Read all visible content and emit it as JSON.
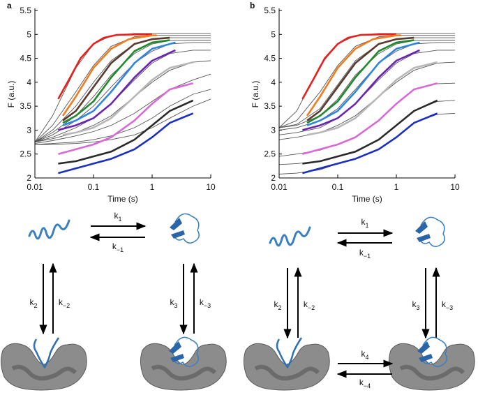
{
  "chart_data": [
    {
      "type": "line",
      "panel": "a",
      "xlabel": "Time (s)",
      "ylabel": "F (a.u.)",
      "xscale": "log",
      "xlim": [
        0.01,
        10
      ],
      "xticks": [
        0.01,
        0.1,
        1,
        10
      ],
      "ylim": [
        2,
        5.5
      ],
      "yticks": [
        2,
        2.5,
        3,
        3.5,
        4,
        4.5,
        5,
        5.5
      ],
      "series": [
        {
          "color": "#e8201c",
          "x": [
            0.025,
            0.04,
            0.06,
            0.1,
            0.15,
            0.25,
            0.5,
            1
          ],
          "values": [
            3.65,
            4.1,
            4.5,
            4.8,
            4.93,
            4.99,
            5.0,
            5.0
          ]
        },
        {
          "color": "#f07d1e",
          "x": [
            0.03,
            0.05,
            0.1,
            0.2,
            0.4,
            1,
            1.2
          ],
          "values": [
            3.3,
            3.7,
            4.3,
            4.7,
            4.9,
            4.98,
            4.98
          ]
        },
        {
          "color": "#5a3a2e",
          "x": [
            0.03,
            0.05,
            0.1,
            0.2,
            0.5,
            1,
            2
          ],
          "values": [
            3.2,
            3.4,
            3.9,
            4.4,
            4.8,
            4.9,
            4.93
          ]
        },
        {
          "color": "#1e8a2c",
          "x": [
            0.03,
            0.05,
            0.1,
            0.2,
            0.5,
            1,
            2
          ],
          "values": [
            3.15,
            3.3,
            3.6,
            4.1,
            4.65,
            4.83,
            4.88
          ]
        },
        {
          "color": "#2f86e0",
          "x": [
            0.03,
            0.05,
            0.1,
            0.2,
            0.5,
            1,
            2.5
          ],
          "values": [
            3.1,
            3.2,
            3.4,
            3.8,
            4.4,
            4.7,
            4.83
          ]
        },
        {
          "color": "#6a24b0",
          "x": [
            0.025,
            0.05,
            0.1,
            0.2,
            0.5,
            1,
            2.5
          ],
          "values": [
            3.0,
            3.1,
            3.25,
            3.55,
            4.1,
            4.45,
            4.67
          ]
        },
        {
          "color": "#b8b8b8",
          "x": [
            0.03,
            0.05,
            0.1,
            0.2,
            0.5,
            1,
            2,
            5
          ],
          "values": [
            2.9,
            2.95,
            3.05,
            3.25,
            3.7,
            4.05,
            4.3,
            4.42
          ]
        },
        {
          "color": "#d86ad8",
          "x": [
            0.025,
            0.05,
            0.1,
            0.2,
            0.5,
            1,
            2,
            5
          ],
          "values": [
            2.5,
            2.6,
            2.7,
            2.85,
            3.2,
            3.55,
            3.85,
            3.98
          ]
        },
        {
          "color": "#2a2a2a",
          "x": [
            0.025,
            0.05,
            0.1,
            0.2,
            0.5,
            1,
            2,
            5
          ],
          "values": [
            2.3,
            2.35,
            2.45,
            2.55,
            2.8,
            3.1,
            3.4,
            3.62
          ]
        },
        {
          "color": "#1a2ec0",
          "x": [
            0.025,
            0.05,
            0.1,
            0.2,
            0.5,
            1,
            2,
            5
          ],
          "values": [
            2.1,
            2.2,
            2.3,
            2.4,
            2.6,
            2.85,
            3.15,
            3.35
          ]
        }
      ],
      "fit_color": "#555555",
      "fit_x": [
        0.01,
        0.02,
        0.05,
        0.1,
        0.2,
        0.5,
        1,
        2,
        5,
        10
      ],
      "fits": [
        [
          2.75,
          3.3,
          4.3,
          4.8,
          4.97,
          5.02,
          5.02,
          5.02,
          5.02,
          5.02
        ],
        [
          2.75,
          3.1,
          3.8,
          4.35,
          4.75,
          4.95,
          4.98,
          4.98,
          4.98,
          4.98
        ],
        [
          2.75,
          3.0,
          3.5,
          4.0,
          4.45,
          4.8,
          4.9,
          4.93,
          4.93,
          4.93
        ],
        [
          2.75,
          2.95,
          3.3,
          3.7,
          4.15,
          4.6,
          4.8,
          4.87,
          4.88,
          4.88
        ],
        [
          2.75,
          2.9,
          3.2,
          3.5,
          3.9,
          4.4,
          4.65,
          4.8,
          4.83,
          4.83
        ],
        [
          2.75,
          2.85,
          3.05,
          3.25,
          3.55,
          4.05,
          4.4,
          4.6,
          4.67,
          4.67
        ],
        [
          2.75,
          2.82,
          2.95,
          3.1,
          3.3,
          3.7,
          4.0,
          4.25,
          4.42,
          4.45
        ],
        [
          2.72,
          2.78,
          2.88,
          2.97,
          3.1,
          3.35,
          3.6,
          3.85,
          4.05,
          4.17
        ],
        [
          2.7,
          2.72,
          2.75,
          2.8,
          2.88,
          3.05,
          3.25,
          3.5,
          3.75,
          3.85
        ],
        [
          2.7,
          2.7,
          2.72,
          2.75,
          2.8,
          2.9,
          3.05,
          3.25,
          3.5,
          3.65
        ]
      ]
    },
    {
      "type": "line",
      "panel": "b",
      "xlabel": "Time (s)",
      "ylabel": "F (a.u.)",
      "xscale": "log",
      "xlim": [
        0.01,
        10
      ],
      "xticks": [
        0.01,
        0.1,
        1,
        10
      ],
      "ylim": [
        2,
        5.5
      ],
      "yticks": [
        2,
        2.5,
        3,
        3.5,
        4,
        4.5,
        5,
        5.5
      ],
      "series": [
        {
          "color": "#e8201c",
          "x": [
            0.025,
            0.04,
            0.06,
            0.1,
            0.15,
            0.25,
            0.5,
            1
          ],
          "values": [
            3.65,
            4.1,
            4.5,
            4.8,
            4.93,
            4.99,
            5.0,
            5.0
          ]
        },
        {
          "color": "#f07d1e",
          "x": [
            0.03,
            0.05,
            0.1,
            0.2,
            0.4,
            1,
            1.2
          ],
          "values": [
            3.3,
            3.7,
            4.3,
            4.7,
            4.9,
            4.98,
            4.98
          ]
        },
        {
          "color": "#5a3a2e",
          "x": [
            0.03,
            0.05,
            0.1,
            0.2,
            0.5,
            1,
            2
          ],
          "values": [
            3.2,
            3.4,
            3.9,
            4.4,
            4.8,
            4.9,
            4.93
          ]
        },
        {
          "color": "#1e8a2c",
          "x": [
            0.03,
            0.05,
            0.1,
            0.2,
            0.5,
            1,
            2
          ],
          "values": [
            3.15,
            3.3,
            3.6,
            4.1,
            4.65,
            4.83,
            4.88
          ]
        },
        {
          "color": "#2f86e0",
          "x": [
            0.03,
            0.05,
            0.1,
            0.2,
            0.5,
            1,
            2.5
          ],
          "values": [
            3.1,
            3.2,
            3.4,
            3.8,
            4.4,
            4.7,
            4.83
          ]
        },
        {
          "color": "#6a24b0",
          "x": [
            0.025,
            0.05,
            0.1,
            0.2,
            0.5,
            1,
            2.5
          ],
          "values": [
            3.0,
            3.1,
            3.25,
            3.55,
            4.1,
            4.45,
            4.67
          ]
        },
        {
          "color": "#b8b8b8",
          "x": [
            0.03,
            0.05,
            0.1,
            0.2,
            0.5,
            1,
            2,
            5
          ],
          "values": [
            2.9,
            2.95,
            3.05,
            3.25,
            3.7,
            4.05,
            4.3,
            4.42
          ]
        },
        {
          "color": "#d86ad8",
          "x": [
            0.025,
            0.05,
            0.1,
            0.2,
            0.5,
            1,
            2,
            5
          ],
          "values": [
            2.5,
            2.6,
            2.7,
            2.85,
            3.2,
            3.55,
            3.85,
            3.98
          ]
        },
        {
          "color": "#2a2a2a",
          "x": [
            0.025,
            0.05,
            0.1,
            0.2,
            0.5,
            1,
            2,
            5
          ],
          "values": [
            2.3,
            2.35,
            2.45,
            2.55,
            2.8,
            3.1,
            3.4,
            3.62
          ]
        },
        {
          "color": "#1a2ec0",
          "x": [
            0.025,
            0.05,
            0.1,
            0.2,
            0.5,
            1,
            2,
            5
          ],
          "values": [
            2.1,
            2.2,
            2.3,
            2.4,
            2.6,
            2.85,
            3.15,
            3.35
          ]
        }
      ],
      "fit_color": "#555555",
      "fit_x": [
        0.01,
        0.02,
        0.05,
        0.1,
        0.2,
        0.5,
        1,
        2,
        5,
        10
      ],
      "fits": [
        [
          3.05,
          3.4,
          4.35,
          4.8,
          4.97,
          5.02,
          5.02,
          5.02,
          5.02,
          5.02
        ],
        [
          3.05,
          3.2,
          3.8,
          4.35,
          4.75,
          4.95,
          4.98,
          4.98,
          4.98,
          4.98
        ],
        [
          3.05,
          3.12,
          3.45,
          3.95,
          4.45,
          4.8,
          4.9,
          4.93,
          4.93,
          4.93
        ],
        [
          3.05,
          3.1,
          3.3,
          3.65,
          4.15,
          4.6,
          4.8,
          4.87,
          4.88,
          4.88
        ],
        [
          3.0,
          3.05,
          3.2,
          3.45,
          3.85,
          4.4,
          4.65,
          4.8,
          4.83,
          4.83
        ],
        [
          2.9,
          2.95,
          3.05,
          3.25,
          3.55,
          4.05,
          4.4,
          4.6,
          4.67,
          4.67
        ],
        [
          2.8,
          2.85,
          2.95,
          3.1,
          3.3,
          3.7,
          4.0,
          4.25,
          4.4,
          4.42
        ],
        [
          2.45,
          2.5,
          2.58,
          2.7,
          2.85,
          3.2,
          3.55,
          3.85,
          3.97,
          3.98
        ],
        [
          2.28,
          2.3,
          2.35,
          2.45,
          2.55,
          2.8,
          3.1,
          3.4,
          3.6,
          3.62
        ],
        [
          2.08,
          2.1,
          2.17,
          2.3,
          2.4,
          2.6,
          2.85,
          3.15,
          3.33,
          3.35
        ]
      ]
    }
  ],
  "schemes": [
    {
      "rates": [
        {
          "symbol": "k",
          "sub": "1"
        },
        {
          "symbol": "k",
          "sub": "−1"
        },
        {
          "symbol": "k",
          "sub": "2"
        },
        {
          "symbol": "k",
          "sub": "−2"
        },
        {
          "symbol": "k",
          "sub": "3"
        },
        {
          "symbol": "k",
          "sub": "−3"
        }
      ]
    },
    {
      "rates": [
        {
          "symbol": "k",
          "sub": "1"
        },
        {
          "symbol": "k",
          "sub": "−1"
        },
        {
          "symbol": "k",
          "sub": "2"
        },
        {
          "symbol": "k",
          "sub": "−2"
        },
        {
          "symbol": "k",
          "sub": "3"
        },
        {
          "symbol": "k",
          "sub": "−3"
        },
        {
          "symbol": "k",
          "sub": "4"
        },
        {
          "symbol": "k",
          "sub": "−4"
        }
      ]
    }
  ]
}
